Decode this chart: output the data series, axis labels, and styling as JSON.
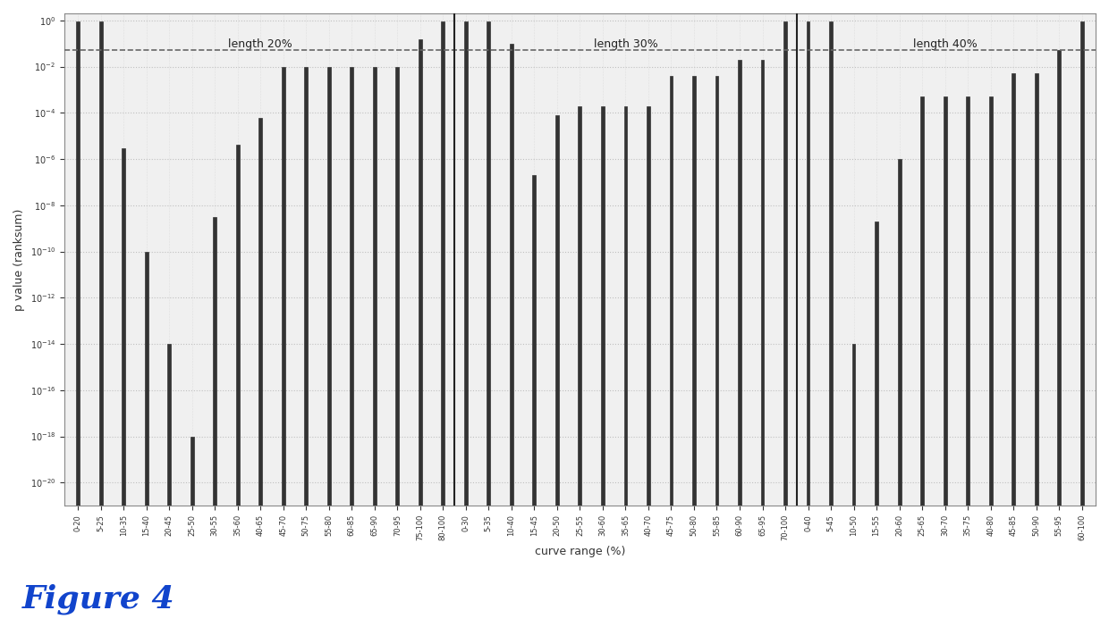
{
  "ylabel": "p value (ranksum)",
  "xlabel": "curve range (%)",
  "figure_caption": "Figure 4",
  "ylim_min": 1e-21,
  "ylim_max": 2.0,
  "threshold_line": 0.05,
  "background_color": "#ffffff",
  "plot_bg_color": "#f0f0f0",
  "bar_color": "#333333",
  "bar_width": 0.15,
  "divider_color": "#222222",
  "grid_color": "#bbbbbb",
  "text_color": "#333333",
  "caption_color": "#1144cc",
  "groups": [
    {
      "label": "length 20%",
      "categories": [
        "0-20",
        "5-25",
        "10-35",
        "15-40",
        "20-45",
        "25-50",
        "30-55",
        "35-60",
        "40-65",
        "45-70",
        "50-75",
        "55-80",
        "60-85",
        "65-90",
        "70-95",
        "75-100",
        "80-100"
      ],
      "values": [
        0.9,
        0.9,
        3e-06,
        1e-10,
        1e-14,
        1e-18,
        3e-09,
        4e-06,
        6e-05,
        0.01,
        0.01,
        0.01,
        0.01,
        0.01,
        0.01,
        0.15,
        0.9
      ]
    },
    {
      "label": "length 30%",
      "categories": [
        "0-30",
        "5-35",
        "10-40",
        "15-45",
        "20-50",
        "25-55",
        "30-60",
        "35-65",
        "40-70",
        "45-75",
        "50-80",
        "55-85",
        "60-90",
        "65-95",
        "70-100"
      ],
      "values": [
        0.9,
        0.9,
        0.1,
        2e-07,
        8e-05,
        0.0002,
        0.0002,
        0.0002,
        0.0002,
        0.004,
        0.004,
        0.004,
        0.02,
        0.02,
        0.9
      ]
    },
    {
      "label": "length 40%",
      "categories": [
        "0-40",
        "5-45",
        "10-50",
        "15-55",
        "20-60",
        "25-65",
        "30-70",
        "35-75",
        "40-80",
        "45-85",
        "50-90",
        "55-95",
        "60-100"
      ],
      "values": [
        0.9,
        0.9,
        1e-14,
        2e-09,
        1e-06,
        0.0005,
        0.0005,
        0.0005,
        0.0005,
        0.005,
        0.005,
        0.05,
        0.9
      ]
    }
  ]
}
